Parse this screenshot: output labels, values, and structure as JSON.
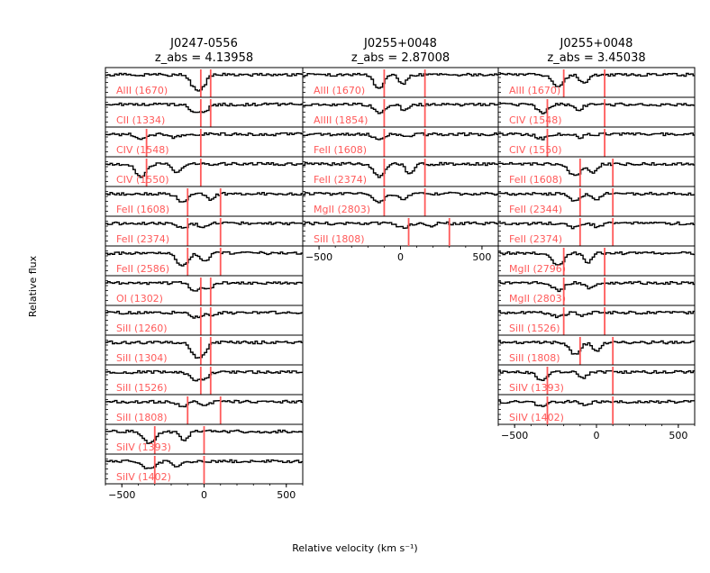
{
  "chart_data": [
    {
      "type": "line",
      "title_line1": "J0247-0556",
      "title_line2": "z_abs = 4.13958",
      "x_ticks": [
        "-500",
        "0",
        "500"
      ],
      "xlim": [
        -600,
        600
      ],
      "panels": [
        {
          "label": "AlII (1670)",
          "markers": [
            -20,
            40
          ]
        },
        {
          "label": "CII (1334)",
          "markers": [
            -20,
            40
          ]
        },
        {
          "label": "CIV (1548)",
          "markers": [
            -350,
            -20
          ]
        },
        {
          "label": "CIV (1550)",
          "markers": [
            -350,
            -20
          ]
        },
        {
          "label": "FeII (1608)",
          "markers": [
            -100,
            100
          ]
        },
        {
          "label": "FeII (2374)",
          "markers": [
            -100,
            100
          ]
        },
        {
          "label": "FeII (2586)",
          "markers": [
            -100,
            100
          ]
        },
        {
          "label": "OI (1302)",
          "markers": [
            -20,
            40
          ]
        },
        {
          "label": "SiII (1260)",
          "markers": [
            -20,
            40
          ]
        },
        {
          "label": "SiII (1304)",
          "markers": [
            -20,
            40
          ]
        },
        {
          "label": "SiII (1526)",
          "markers": [
            -20,
            40
          ]
        },
        {
          "label": "SiII (1808)",
          "markers": [
            -100,
            100
          ]
        },
        {
          "label": "SiIV (1393)",
          "markers": [
            -300,
            0
          ]
        },
        {
          "label": "SiIV (1402)",
          "markers": [
            -300,
            0
          ]
        }
      ]
    },
    {
      "type": "line",
      "title_line1": "J0255+0048",
      "title_line2": "z_abs = 2.87008",
      "x_ticks": [
        "-500",
        "0",
        "500"
      ],
      "xlim": [
        -600,
        600
      ],
      "panels": [
        {
          "label": "AlII (1670)",
          "markers": [
            -100,
            150
          ]
        },
        {
          "label": "AlIII (1854)",
          "markers": [
            -100,
            150
          ]
        },
        {
          "label": "FeII (1608)",
          "markers": [
            -100,
            150
          ]
        },
        {
          "label": "FeII (2374)",
          "markers": [
            -100,
            150
          ]
        },
        {
          "label": "MgII (2803)",
          "markers": [
            -100,
            150
          ]
        },
        {
          "label": "SiII (1808)",
          "markers": [
            50,
            300
          ]
        }
      ]
    },
    {
      "type": "line",
      "title_line1": "J0255+0048",
      "title_line2": "z_abs = 3.45038",
      "x_ticks": [
        "-500",
        "0",
        "500"
      ],
      "xlim": [
        -600,
        600
      ],
      "panels": [
        {
          "label": "AlII (1670)",
          "markers": [
            -200,
            50
          ]
        },
        {
          "label": "CIV (1548)",
          "markers": [
            -300,
            50
          ]
        },
        {
          "label": "CIV (1550)",
          "markers": [
            -300,
            50
          ]
        },
        {
          "label": "FeII (1608)",
          "markers": [
            -100,
            100
          ]
        },
        {
          "label": "FeII (2344)",
          "markers": [
            -100,
            100
          ]
        },
        {
          "label": "FeII (2374)",
          "markers": [
            -100,
            100
          ]
        },
        {
          "label": "MgII (2796)",
          "markers": [
            -200,
            50
          ]
        },
        {
          "label": "MgII (2803)",
          "markers": [
            -200,
            50
          ]
        },
        {
          "label": "SiII (1526)",
          "markers": [
            -200,
            50
          ]
        },
        {
          "label": "SiII (1808)",
          "markers": [
            -100,
            100
          ]
        },
        {
          "label": "SiIV (1393)",
          "markers": [
            -300,
            100
          ]
        },
        {
          "label": "SiIV (1402)",
          "markers": [
            -300,
            100
          ]
        }
      ]
    }
  ],
  "xlabel": "Relative velocity (km s⁻¹)",
  "ylabel": "Relative flux",
  "colors": {
    "marker": "#ff5a5a",
    "label": "#ff5a5a",
    "spectrum": "#000000",
    "axes": "#000000"
  }
}
